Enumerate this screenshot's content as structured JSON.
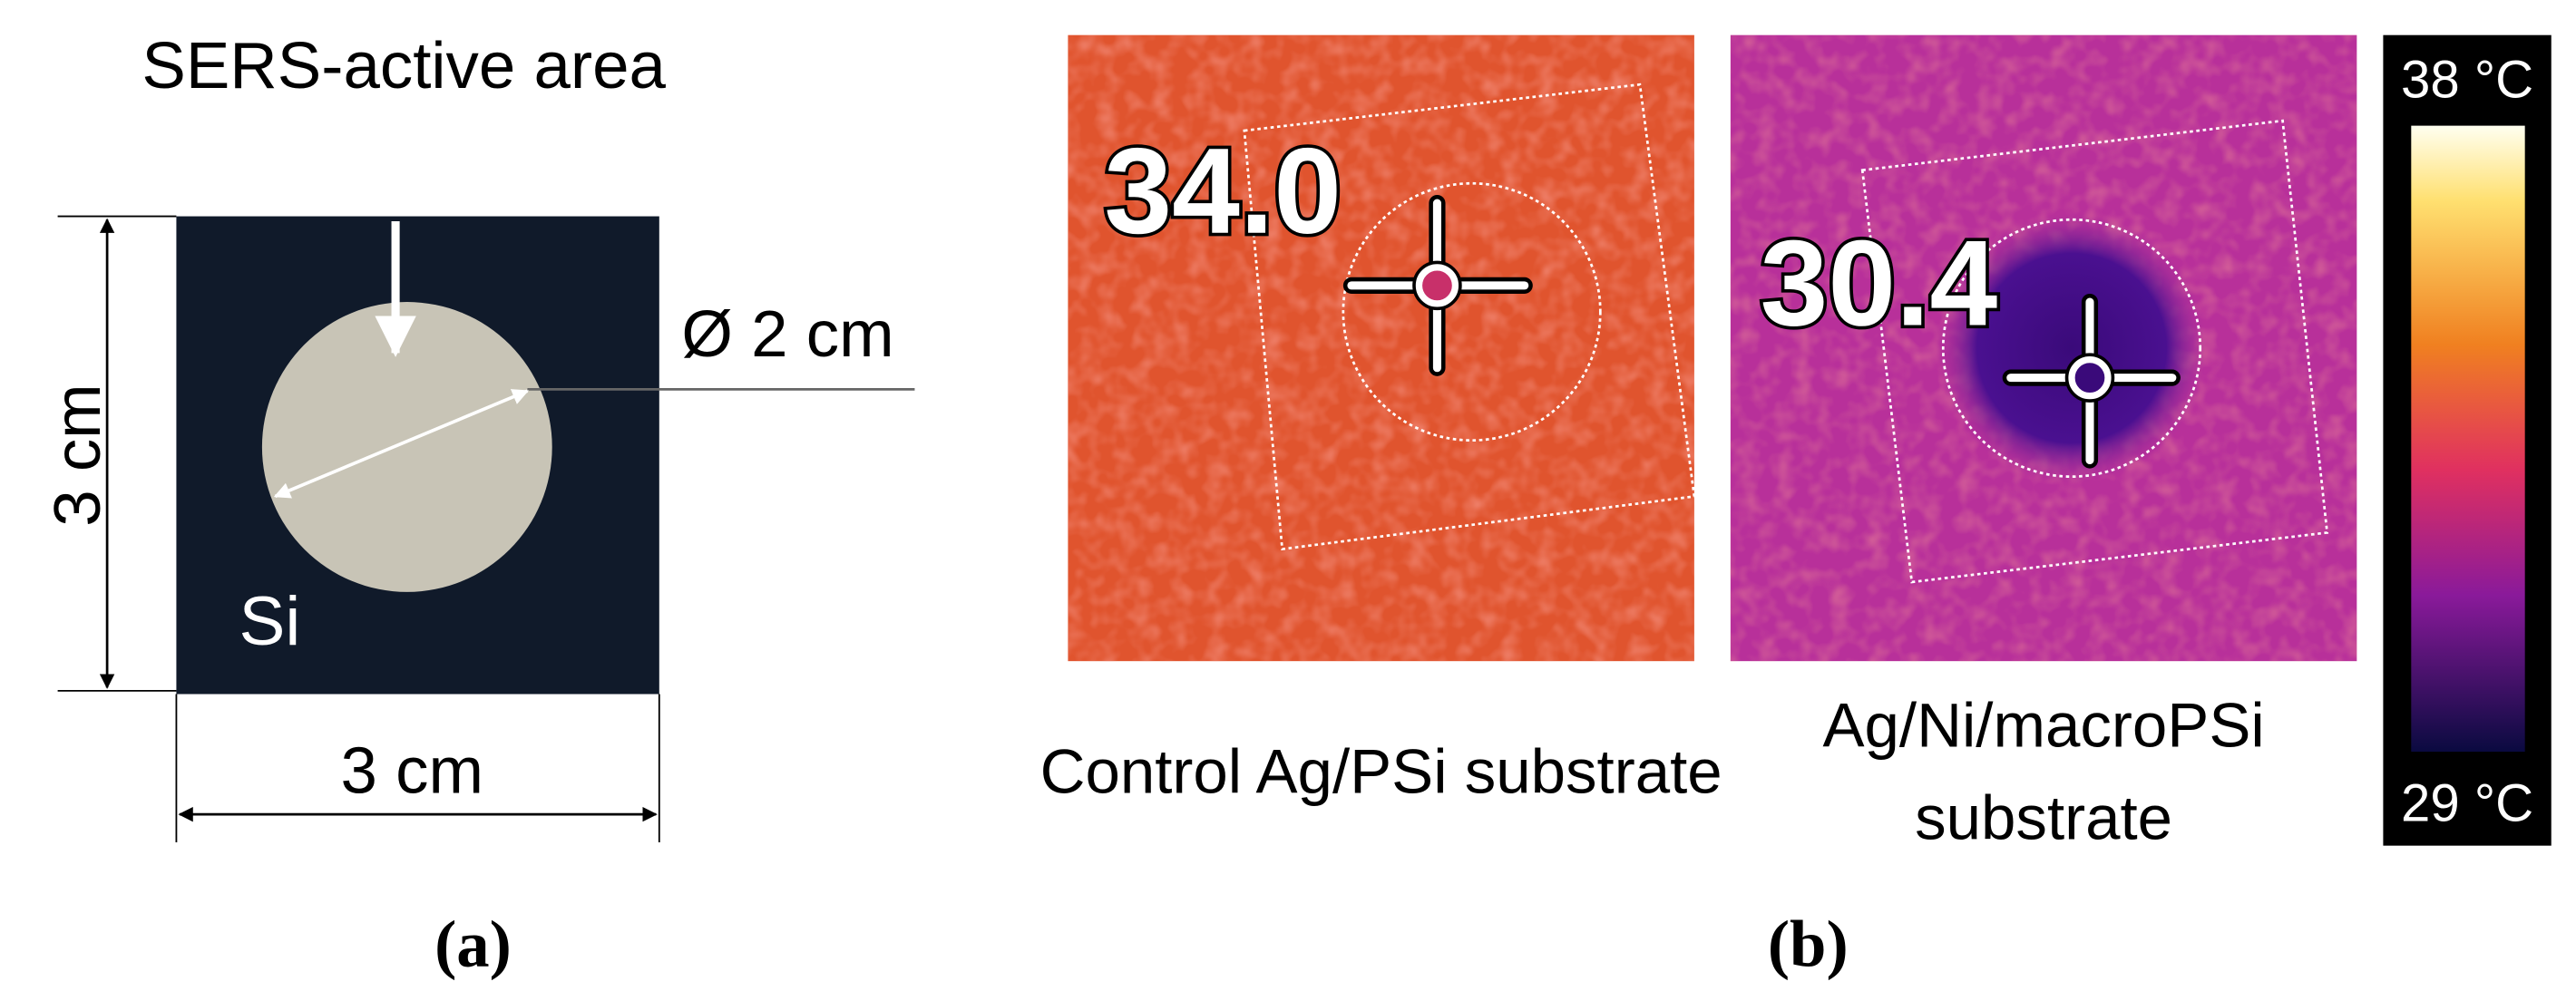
{
  "panel_a": {
    "title": "SERS-active area",
    "diameter": "Ø 2 cm",
    "height": "3 cm",
    "width": "3 cm",
    "material": "Si",
    "caption": "(a)"
  },
  "panel_b": {
    "images": [
      {
        "reading": "34.0",
        "caption_lines": [
          "Control Ag/PSi substrate"
        ]
      },
      {
        "reading": "30.4",
        "caption_lines": [
          "Ag/Ni/macroPSi",
          "substrate"
        ]
      }
    ],
    "colorbar": {
      "max": "38 °C",
      "min": "29 °C"
    },
    "caption": "(b)"
  }
}
